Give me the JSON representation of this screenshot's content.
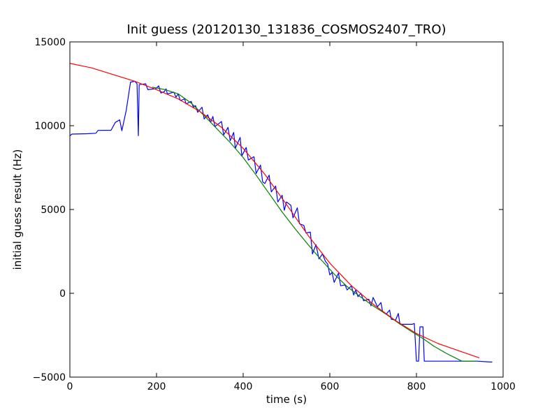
{
  "chart_data": {
    "type": "line",
    "title": "Init guess (20120130_131836_COSMOS2407_TRO)",
    "xlabel": "time (s)",
    "ylabel": "initial guess result (Hz)",
    "xlim": [
      0,
      1000
    ],
    "ylim": [
      -5000,
      15000
    ],
    "xticks": [
      0,
      200,
      400,
      600,
      800,
      1000
    ],
    "xtick_labels": [
      "0",
      "200",
      "400",
      "600",
      "800",
      "1000"
    ],
    "yticks": [
      -5000,
      0,
      5000,
      10000,
      15000
    ],
    "ytick_labels": [
      "−5000",
      "0",
      "5000",
      "10000",
      "15000"
    ],
    "grid": false,
    "legend": "none",
    "series": [
      {
        "color": "#0000ff",
        "points": [
          [
            0,
            9400
          ],
          [
            5,
            9500
          ],
          [
            40,
            9520
          ],
          [
            60,
            9550
          ],
          [
            65,
            9720
          ],
          [
            95,
            9730
          ],
          [
            105,
            10200
          ],
          [
            115,
            10350
          ],
          [
            120,
            9700
          ],
          [
            130,
            10900
          ],
          [
            140,
            12600
          ],
          [
            150,
            12650
          ],
          [
            155,
            12500
          ],
          [
            158,
            9400
          ],
          [
            160,
            12450
          ],
          [
            175,
            12500
          ],
          [
            180,
            12150
          ],
          [
            198,
            12200
          ],
          [
            205,
            12380
          ],
          [
            210,
            11950
          ],
          [
            218,
            12030
          ],
          [
            222,
            12200
          ],
          [
            225,
            11900
          ],
          [
            240,
            12000
          ],
          [
            245,
            11700
          ],
          [
            250,
            11900
          ],
          [
            255,
            11500
          ],
          [
            265,
            11600
          ],
          [
            268,
            11300
          ],
          [
            280,
            11450
          ],
          [
            285,
            11100
          ],
          [
            290,
            11200
          ],
          [
            295,
            10800
          ],
          [
            305,
            11100
          ],
          [
            310,
            10400
          ],
          [
            318,
            10650
          ],
          [
            325,
            10200
          ],
          [
            330,
            10550
          ],
          [
            335,
            9950
          ],
          [
            350,
            10250
          ],
          [
            355,
            9450
          ],
          [
            365,
            9900
          ],
          [
            370,
            9100
          ],
          [
            378,
            9600
          ],
          [
            382,
            8650
          ],
          [
            393,
            9300
          ],
          [
            397,
            8200
          ],
          [
            407,
            8700
          ],
          [
            412,
            7950
          ],
          [
            425,
            8150
          ],
          [
            430,
            7150
          ],
          [
            440,
            7650
          ],
          [
            445,
            6650
          ],
          [
            450,
            6550
          ],
          [
            460,
            7050
          ],
          [
            465,
            6050
          ],
          [
            475,
            6400
          ],
          [
            480,
            5450
          ],
          [
            490,
            5850
          ],
          [
            495,
            4950
          ],
          [
            500,
            5450
          ],
          [
            510,
            5250
          ],
          [
            515,
            4500
          ],
          [
            525,
            5100
          ],
          [
            530,
            4150
          ],
          [
            540,
            4050
          ],
          [
            545,
            3600
          ],
          [
            555,
            3650
          ],
          [
            560,
            2350
          ],
          [
            568,
            2900
          ],
          [
            575,
            2050
          ],
          [
            583,
            2350
          ],
          [
            590,
            1900
          ],
          [
            595,
            1750
          ],
          [
            600,
            1100
          ],
          [
            605,
            1250
          ],
          [
            610,
            650
          ],
          [
            620,
            1200
          ],
          [
            625,
            450
          ],
          [
            635,
            500
          ],
          [
            640,
            200
          ],
          [
            650,
            450
          ],
          [
            655,
            -100
          ],
          [
            660,
            200
          ],
          [
            665,
            -200
          ],
          [
            672,
            0
          ],
          [
            678,
            -450
          ],
          [
            690,
            -350
          ],
          [
            695,
            -750
          ],
          [
            700,
            -250
          ],
          [
            710,
            -800
          ],
          [
            718,
            -550
          ],
          [
            722,
            -1100
          ],
          [
            730,
            -1250
          ],
          [
            738,
            -1000
          ],
          [
            742,
            -1550
          ],
          [
            752,
            -1600
          ],
          [
            758,
            -1200
          ],
          [
            762,
            -1850
          ],
          [
            790,
            -1850
          ],
          [
            795,
            -1800
          ],
          [
            800,
            -4050
          ],
          [
            805,
            -4050
          ],
          [
            808,
            -2000
          ],
          [
            815,
            -2000
          ],
          [
            818,
            -4050
          ],
          [
            940,
            -4050
          ],
          [
            970,
            -4100
          ],
          [
            975,
            -4100
          ]
        ]
      },
      {
        "color": "#008000",
        "points": [
          [
            190,
            12300
          ],
          [
            220,
            12150
          ],
          [
            250,
            11900
          ],
          [
            280,
            11350
          ],
          [
            310,
            10600
          ],
          [
            340,
            9800
          ],
          [
            370,
            9000
          ],
          [
            400,
            8100
          ],
          [
            430,
            7050
          ],
          [
            460,
            5950
          ],
          [
            490,
            4850
          ],
          [
            520,
            3850
          ],
          [
            550,
            2900
          ],
          [
            580,
            2000
          ],
          [
            610,
            1150
          ],
          [
            640,
            400
          ],
          [
            670,
            -200
          ],
          [
            700,
            -750
          ],
          [
            730,
            -1250
          ],
          [
            760,
            -1800
          ],
          [
            790,
            -2300
          ],
          [
            815,
            -2700
          ],
          [
            840,
            -3150
          ],
          [
            870,
            -3600
          ],
          [
            905,
            -4050
          ],
          [
            940,
            -4050
          ]
        ]
      },
      {
        "color": "#ff0000",
        "points": [
          [
            0,
            13720
          ],
          [
            50,
            13450
          ],
          [
            100,
            13050
          ],
          [
            150,
            12650
          ],
          [
            200,
            12150
          ],
          [
            250,
            11600
          ],
          [
            300,
            10850
          ],
          [
            350,
            9900
          ],
          [
            400,
            8650
          ],
          [
            450,
            7100
          ],
          [
            500,
            5300
          ],
          [
            550,
            3450
          ],
          [
            600,
            1800
          ],
          [
            650,
            450
          ],
          [
            700,
            -650
          ],
          [
            750,
            -1600
          ],
          [
            800,
            -2400
          ],
          [
            850,
            -3000
          ],
          [
            900,
            -3450
          ],
          [
            945,
            -3850
          ]
        ]
      }
    ]
  }
}
